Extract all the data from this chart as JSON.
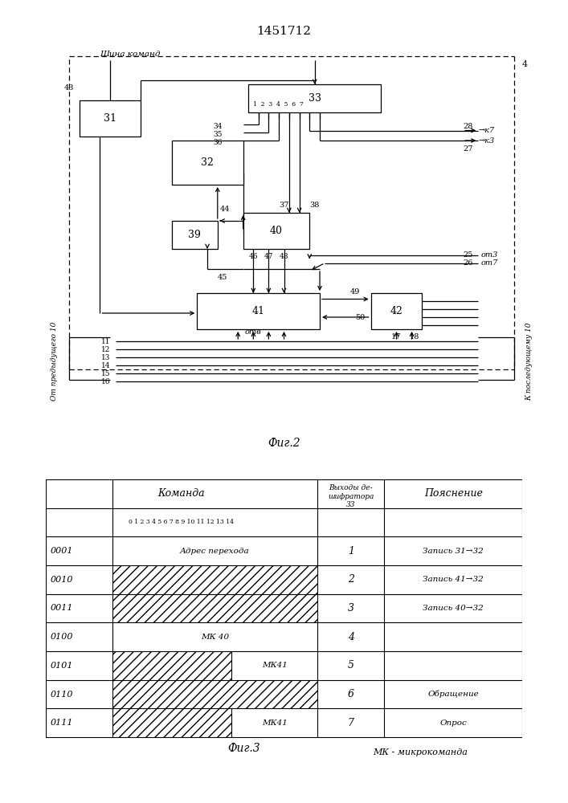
{
  "title": "1451712",
  "fig2_label": "Фиг.2",
  "fig3_label": "Фиг.3",
  "mk_label": "МК - микрокоманда",
  "background_color": "#ffffff",
  "line_color": "#000000",
  "table": {
    "rows": [
      {
        "code": "0001",
        "cmd": "Адрес перехода",
        "hatch": "none",
        "split": false,
        "split_label": "",
        "out": "1",
        "note": "Запись 31→32"
      },
      {
        "code": "0010",
        "cmd": "",
        "hatch": "full",
        "split": false,
        "split_label": "",
        "out": "2",
        "note": "Запись 41→32"
      },
      {
        "code": "0011",
        "cmd": "",
        "hatch": "full",
        "split": false,
        "split_label": "",
        "out": "3",
        "note": "Запись 40→32"
      },
      {
        "code": "0100",
        "cmd": "МК 40",
        "hatch": "none",
        "split": false,
        "split_label": "",
        "out": "4",
        "note": ""
      },
      {
        "code": "0101",
        "cmd": "МК41",
        "hatch": "left_hatch",
        "split": true,
        "split_label": "МК41",
        "out": "5",
        "note": ""
      },
      {
        "code": "0110",
        "cmd": "",
        "hatch": "full",
        "split": false,
        "split_label": "",
        "out": "6",
        "note": "Обращение"
      },
      {
        "code": "0111",
        "cmd": "МК41",
        "hatch": "left_hatch",
        "split": true,
        "split_label": "МК41",
        "out": "7",
        "note": "Опрос"
      }
    ]
  }
}
